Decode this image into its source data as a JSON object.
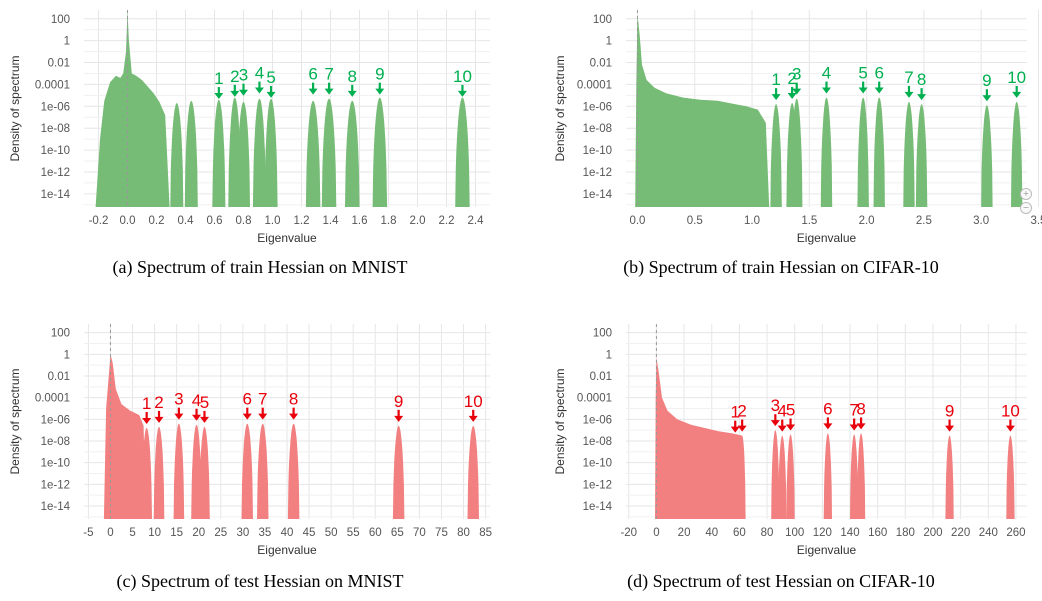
{
  "chart_data": [
    {
      "type": "area",
      "xlabel": "Eigenvalue",
      "ylabel": "Density of spectrum",
      "caption": "(a) Spectrum of train Hessian on MNIST",
      "xlim": [
        -0.3,
        2.5
      ],
      "x_ticks": [
        -0.2,
        0.0,
        0.2,
        0.4,
        0.6,
        0.8,
        1.0,
        1.2,
        1.4,
        1.6,
        1.8,
        2.0,
        2.2,
        2.4
      ],
      "x_tick_labels": [
        "-0.2",
        "0.0",
        "0.2",
        "0.4",
        "0.6",
        "0.8",
        "1.0",
        "1.2",
        "1.4",
        "1.6",
        "1.8",
        "2.0",
        "2.2",
        "2.4"
      ],
      "y_log_ticks": [
        2,
        0,
        -2,
        -4,
        -6,
        -8,
        -10,
        -12,
        -14
      ],
      "y_tick_labels": [
        "100",
        "1",
        "0.01",
        "0.0001",
        "1e-06",
        "1e-08",
        "1e-10",
        "1e-12",
        "1e-14"
      ],
      "y_log_floor": -15.2,
      "color": "#76bc76",
      "label_color": "#00b050",
      "bulk": [
        [
          -0.22,
          -15.2
        ],
        [
          -0.19,
          -9
        ],
        [
          -0.16,
          -5.5
        ],
        [
          -0.12,
          -3.8
        ],
        [
          -0.08,
          -3.2
        ],
        [
          -0.05,
          -3.4
        ],
        [
          -0.03,
          -3.0
        ],
        [
          -0.01,
          -1.0
        ],
        [
          0.0,
          2.7
        ],
        [
          0.01,
          0.0
        ],
        [
          0.03,
          -3.0
        ],
        [
          0.06,
          -3.2
        ],
        [
          0.1,
          -3.6
        ],
        [
          0.14,
          -4.2
        ],
        [
          0.18,
          -4.8
        ],
        [
          0.22,
          -5.6
        ],
        [
          0.26,
          -6.8
        ],
        [
          0.29,
          -15.2
        ]
      ],
      "blobs": [
        [
          0.34,
          0.045,
          -5.7
        ],
        [
          0.44,
          0.045,
          -5.5
        ],
        [
          0.63,
          0.045,
          -5.4
        ],
        [
          0.74,
          0.045,
          -5.2
        ],
        [
          0.8,
          0.045,
          -5.6
        ],
        [
          0.91,
          0.045,
          -5.3
        ],
        [
          0.99,
          0.045,
          -5.3
        ],
        [
          1.28,
          0.05,
          -5.5
        ],
        [
          1.39,
          0.05,
          -5.3
        ],
        [
          1.55,
          0.05,
          -5.5
        ],
        [
          1.74,
          0.05,
          -5.2
        ],
        [
          2.31,
          0.05,
          -5.2
        ]
      ],
      "eigenvalues": [
        0.63,
        0.74,
        0.8,
        0.91,
        0.99,
        1.28,
        1.39,
        1.55,
        1.74,
        2.31
      ],
      "eigen_labels": [
        "1",
        "2",
        "3",
        "4",
        "5",
        "6",
        "7",
        "8",
        "9",
        "10"
      ]
    },
    {
      "type": "area",
      "xlabel": "Eigenvalue",
      "ylabel": "Density of spectrum",
      "caption": "(b) Spectrum of train Hessian on CIFAR-10",
      "xlim": [
        -0.1,
        3.4
      ],
      "x_ticks": [
        0.0,
        0.5,
        1.0,
        1.5,
        2.0,
        2.5,
        3.0,
        3.5
      ],
      "x_tick_labels": [
        "0.0",
        "0.5",
        "1.0",
        "1.5",
        "2.0",
        "2.5",
        "3.0",
        "3.5"
      ],
      "y_log_ticks": [
        2,
        0,
        -2,
        -4,
        -6,
        -8,
        -10,
        -12,
        -14
      ],
      "y_tick_labels": [
        "100",
        "1",
        "0.01",
        "0.0001",
        "1e-06",
        "1e-08",
        "1e-10",
        "1e-12",
        "1e-14"
      ],
      "y_log_floor": -15.2,
      "color": "#76bc76",
      "label_color": "#00b050",
      "bulk": [
        [
          -0.02,
          -15.2
        ],
        [
          -0.01,
          -4
        ],
        [
          0.0,
          2.4
        ],
        [
          0.02,
          0.5
        ],
        [
          0.04,
          -2.2
        ],
        [
          0.08,
          -3.6
        ],
        [
          0.15,
          -4.3
        ],
        [
          0.25,
          -4.8
        ],
        [
          0.4,
          -5.2
        ],
        [
          0.55,
          -5.4
        ],
        [
          0.7,
          -5.5
        ],
        [
          0.85,
          -5.8
        ],
        [
          0.95,
          -6.0
        ],
        [
          1.05,
          -6.3
        ],
        [
          1.12,
          -7.5
        ],
        [
          1.15,
          -15.2
        ]
      ],
      "blobs": [
        [
          1.21,
          0.05,
          -5.8
        ],
        [
          1.35,
          0.05,
          -5.7
        ],
        [
          1.39,
          0.05,
          -5.3
        ],
        [
          1.65,
          0.05,
          -5.2
        ],
        [
          1.97,
          0.05,
          -5.2
        ],
        [
          2.11,
          0.05,
          -5.2
        ],
        [
          2.37,
          0.05,
          -5.6
        ],
        [
          2.48,
          0.05,
          -5.8
        ],
        [
          3.05,
          0.05,
          -5.9
        ],
        [
          3.31,
          0.05,
          -5.6
        ]
      ],
      "eigenvalues": [
        1.21,
        1.35,
        1.39,
        1.65,
        1.97,
        2.11,
        2.37,
        2.48,
        3.05,
        3.31
      ],
      "eigen_labels": [
        "1",
        "2",
        "3",
        "4",
        "5",
        "6",
        "7",
        "8",
        "9",
        "10"
      ]
    },
    {
      "type": "area",
      "xlabel": "Eigenvalue",
      "ylabel": "Density of spectrum",
      "caption": "(c) Spectrum of test Hessian on MNIST",
      "xlim": [
        -6,
        86
      ],
      "x_ticks": [
        -5,
        0,
        5,
        10,
        15,
        20,
        25,
        30,
        35,
        40,
        45,
        50,
        55,
        60,
        65,
        70,
        75,
        80,
        85
      ],
      "x_tick_labels": [
        "-5",
        "0",
        "5",
        "10",
        "15",
        "20",
        "25",
        "30",
        "35",
        "40",
        "45",
        "50",
        "55",
        "60",
        "65",
        "70",
        "75",
        "80",
        "85"
      ],
      "y_log_ticks": [
        2,
        0,
        -2,
        -4,
        -6,
        -8,
        -10,
        -12,
        -14
      ],
      "y_tick_labels": [
        "100",
        "1",
        "0.01",
        "0.0001",
        "1e-06",
        "1e-08",
        "1e-10",
        "1e-12",
        "1e-14"
      ],
      "y_log_floor": -15.2,
      "color": "#f28080",
      "label_color": "#e8000b",
      "bulk": [
        [
          -1.5,
          -15.2
        ],
        [
          -1.0,
          -5
        ],
        [
          -0.3,
          -1.5
        ],
        [
          0.0,
          0.0
        ],
        [
          0.5,
          -0.8
        ],
        [
          1.2,
          -3.2
        ],
        [
          2.5,
          -4.6
        ],
        [
          4.5,
          -5.2
        ],
        [
          6.5,
          -5.6
        ],
        [
          7.5,
          -6.6
        ],
        [
          8.0,
          -15.2
        ]
      ],
      "blobs": [
        [
          8.2,
          1.2,
          -6.8
        ],
        [
          11.0,
          1.2,
          -6.7
        ],
        [
          15.5,
          1.2,
          -6.4
        ],
        [
          19.5,
          1.2,
          -6.5
        ],
        [
          21.3,
          1.2,
          -6.7
        ],
        [
          31.0,
          1.3,
          -6.4
        ],
        [
          34.5,
          1.3,
          -6.4
        ],
        [
          41.5,
          1.3,
          -6.4
        ],
        [
          65.3,
          1.3,
          -6.6
        ],
        [
          82.2,
          1.3,
          -6.6
        ]
      ],
      "eigenvalues": [
        8.2,
        11.0,
        15.5,
        19.5,
        21.3,
        31.0,
        34.5,
        41.5,
        65.3,
        82.2
      ],
      "eigen_labels": [
        "1",
        "2",
        "3",
        "4",
        "5",
        "6",
        "7",
        "8",
        "9",
        "10"
      ]
    },
    {
      "type": "area",
      "xlabel": "Eigenvalue",
      "ylabel": "Density of spectrum",
      "caption": "(d) Spectrum of test Hessian on CIFAR-10",
      "xlim": [
        -22,
        268
      ],
      "x_ticks": [
        -20,
        0,
        20,
        40,
        60,
        80,
        100,
        120,
        140,
        160,
        180,
        200,
        220,
        240,
        260
      ],
      "x_tick_labels": [
        "-20",
        "0",
        "20",
        "40",
        "60",
        "80",
        "100",
        "120",
        "140",
        "160",
        "180",
        "200",
        "220",
        "240",
        "260"
      ],
      "y_log_ticks": [
        2,
        0,
        -2,
        -4,
        -6,
        -8,
        -10,
        -12,
        -14
      ],
      "y_tick_labels": [
        "100",
        "1",
        "0.01",
        "0.0001",
        "1e-06",
        "1e-08",
        "1e-10",
        "1e-12",
        "1e-14"
      ],
      "y_log_floor": -15.2,
      "color": "#f28080",
      "label_color": "#e8000b",
      "bulk": [
        [
          -1.0,
          -15.2
        ],
        [
          -0.5,
          -4
        ],
        [
          0.0,
          -0.3
        ],
        [
          1.5,
          -1.5
        ],
        [
          4.0,
          -4.0
        ],
        [
          8.0,
          -5.2
        ],
        [
          15.0,
          -6.0
        ],
        [
          25.0,
          -6.5
        ],
        [
          35.0,
          -6.8
        ],
        [
          45.0,
          -7.1
        ],
        [
          55.0,
          -7.3
        ],
        [
          62.0,
          -7.5
        ],
        [
          64.0,
          -15.2
        ]
      ],
      "blobs": [
        [
          57.0,
          2.5,
          -7.6
        ],
        [
          62.0,
          2.5,
          -7.5
        ],
        [
          86.0,
          3.0,
          -7.0
        ],
        [
          91.0,
          3.0,
          -7.5
        ],
        [
          97.0,
          3.0,
          -7.4
        ],
        [
          124.0,
          3.0,
          -7.3
        ],
        [
          143.0,
          3.0,
          -7.4
        ],
        [
          148.0,
          3.0,
          -7.3
        ],
        [
          212.0,
          3.0,
          -7.5
        ],
        [
          256.0,
          3.0,
          -7.5
        ]
      ],
      "eigenvalues": [
        57.0,
        62.0,
        86.0,
        91.0,
        97.0,
        124.0,
        143.0,
        148.0,
        212.0,
        256.0
      ],
      "eigen_labels": [
        "1",
        "2",
        "3",
        "4",
        "5",
        "6",
        "7",
        "8",
        "9",
        "10"
      ]
    }
  ]
}
